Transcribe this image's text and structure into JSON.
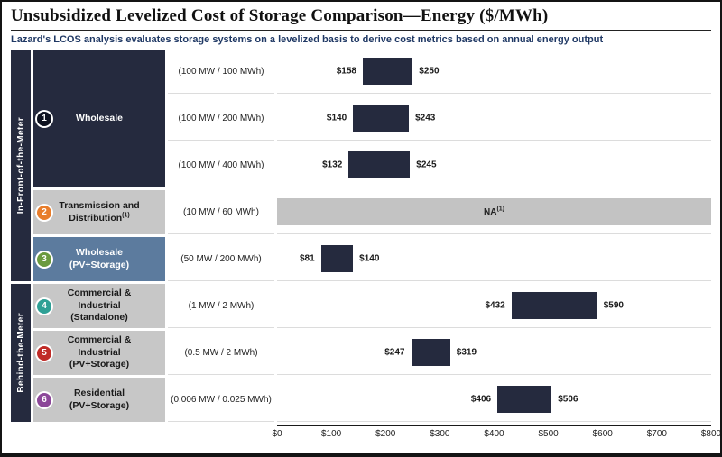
{
  "page": {
    "title": "Unsubsidized Levelized Cost of Storage Comparison—Energy ($/MWh)",
    "subtitle": "Lazard's LCOS analysis evaluates storage systems on a levelized basis to derive cost metrics based on annual energy output"
  },
  "colors": {
    "bar": "#252A3E",
    "na_bar": "#C3C3C3",
    "band": "#252A3E"
  },
  "meter_bands": [
    {
      "label": "In-Front-of-the-Meter"
    },
    {
      "label": "Behind-the-Meter"
    }
  ],
  "categories": [
    {
      "badge": "1",
      "badge_color": "#0E1220",
      "cell_bg": "#252A3E",
      "cell_fg": "#FFFFFF",
      "label": "Wholesale"
    },
    {
      "badge": "2",
      "badge_color": "#E87D2B",
      "cell_bg": "#C7C7C7",
      "cell_fg": "#1A1A1A",
      "label": "Transmission and\nDistribution",
      "label_sup": "(1)"
    },
    {
      "badge": "3",
      "badge_color": "#6B9A3E",
      "cell_bg": "#5C7B9E",
      "cell_fg": "#FFFFFF",
      "label": "Wholesale\n(PV+Storage)"
    },
    {
      "badge": "4",
      "badge_color": "#2EA095",
      "cell_bg": "#C7C7C7",
      "cell_fg": "#1A1A1A",
      "label": "Commercial &\nIndustrial\n(Standalone)"
    },
    {
      "badge": "5",
      "badge_color": "#C02B27",
      "cell_bg": "#C7C7C7",
      "cell_fg": "#1A1A1A",
      "label": "Commercial &\nIndustrial\n(PV+Storage)"
    },
    {
      "badge": "6",
      "badge_color": "#8C4799",
      "cell_bg": "#C7C7C7",
      "cell_fg": "#1A1A1A",
      "label": "Residential\n(PV+Storage)"
    }
  ],
  "chart_data": {
    "type": "bar",
    "orientation": "horizontal",
    "units": "$/MWh",
    "xlim": [
      0,
      800
    ],
    "x_ticks": [
      "$0",
      "$100",
      "$200",
      "$300",
      "$400",
      "$500",
      "$600",
      "$700",
      "$800"
    ],
    "rows": [
      {
        "group": "In-Front-of-the-Meter",
        "category": "Wholesale",
        "spec": "(100 MW / 100 MWh)",
        "low": 158,
        "high": 250,
        "low_label": "$158",
        "high_label": "$250"
      },
      {
        "group": "In-Front-of-the-Meter",
        "category": "Wholesale",
        "spec": "(100 MW / 200 MWh)",
        "low": 140,
        "high": 243,
        "low_label": "$140",
        "high_label": "$243"
      },
      {
        "group": "In-Front-of-the-Meter",
        "category": "Wholesale",
        "spec": "(100 MW / 400 MWh)",
        "low": 132,
        "high": 245,
        "low_label": "$132",
        "high_label": "$245"
      },
      {
        "group": "In-Front-of-the-Meter",
        "category": "Transmission and Distribution",
        "spec": "(10 MW / 60 MWh)",
        "na": true,
        "na_label": "NA",
        "na_sup": "(1)"
      },
      {
        "group": "In-Front-of-the-Meter",
        "category": "Wholesale (PV+Storage)",
        "spec": "(50 MW / 200 MWh)",
        "low": 81,
        "high": 140,
        "low_label": "$81",
        "high_label": "$140"
      },
      {
        "group": "Behind-the-Meter",
        "category": "Commercial & Industrial (Standalone)",
        "spec": "(1 MW / 2 MWh)",
        "low": 432,
        "high": 590,
        "low_label": "$432",
        "high_label": "$590"
      },
      {
        "group": "Behind-the-Meter",
        "category": "Commercial & Industrial (PV+Storage)",
        "spec": "(0.5 MW / 2 MWh)",
        "low": 247,
        "high": 319,
        "low_label": "$247",
        "high_label": "$319"
      },
      {
        "group": "Behind-the-Meter",
        "category": "Residential (PV+Storage)",
        "spec": "(0.006 MW / 0.025 MWh)",
        "low": 406,
        "high": 506,
        "low_label": "$406",
        "high_label": "$506"
      }
    ]
  }
}
